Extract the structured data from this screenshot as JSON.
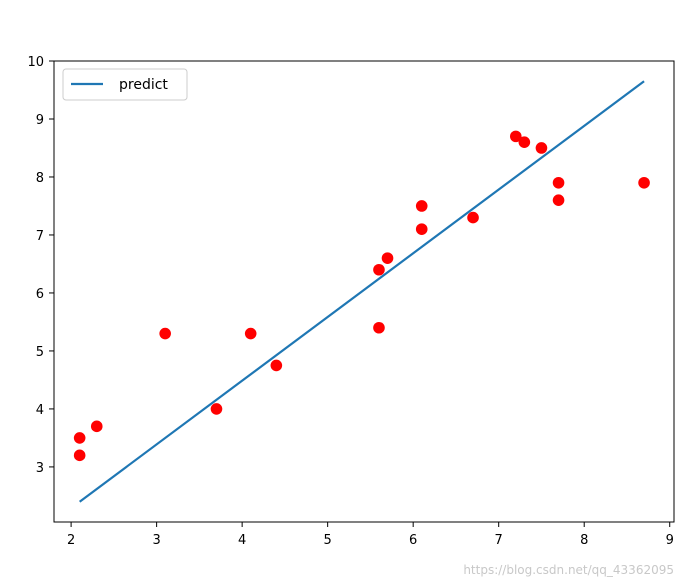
{
  "chart_data": {
    "type": "scatter",
    "title": "",
    "xlabel": "",
    "ylabel": "",
    "xlim": [
      1.8,
      9.05
    ],
    "ylim": [
      2.05,
      10.0
    ],
    "xticks": [
      2,
      3,
      4,
      5,
      6,
      7,
      8,
      9
    ],
    "yticks": [
      3,
      4,
      5,
      6,
      7,
      8,
      9,
      10
    ],
    "grid": false,
    "legend_position": "top-left",
    "series": [
      {
        "name": "",
        "kind": "scatter",
        "color": "#ff0000",
        "points": [
          [
            2.1,
            3.5
          ],
          [
            2.1,
            3.2
          ],
          [
            2.3,
            3.7
          ],
          [
            3.1,
            5.3
          ],
          [
            3.7,
            4.0
          ],
          [
            4.1,
            5.3
          ],
          [
            4.4,
            4.75
          ],
          [
            5.6,
            6.4
          ],
          [
            5.7,
            6.6
          ],
          [
            5.6,
            5.4
          ],
          [
            6.1,
            7.5
          ],
          [
            6.1,
            7.1
          ],
          [
            6.7,
            7.3
          ],
          [
            7.2,
            8.7
          ],
          [
            7.3,
            8.6
          ],
          [
            7.5,
            8.5
          ],
          [
            7.7,
            7.9
          ],
          [
            7.7,
            7.6
          ],
          [
            8.7,
            7.9
          ]
        ]
      },
      {
        "name": "predict",
        "kind": "line",
        "color": "#1f77b4",
        "points": [
          [
            2.1,
            2.4
          ],
          [
            8.7,
            9.65
          ]
        ]
      }
    ]
  },
  "watermark": "https://blog.csdn.net/qq_43362095"
}
